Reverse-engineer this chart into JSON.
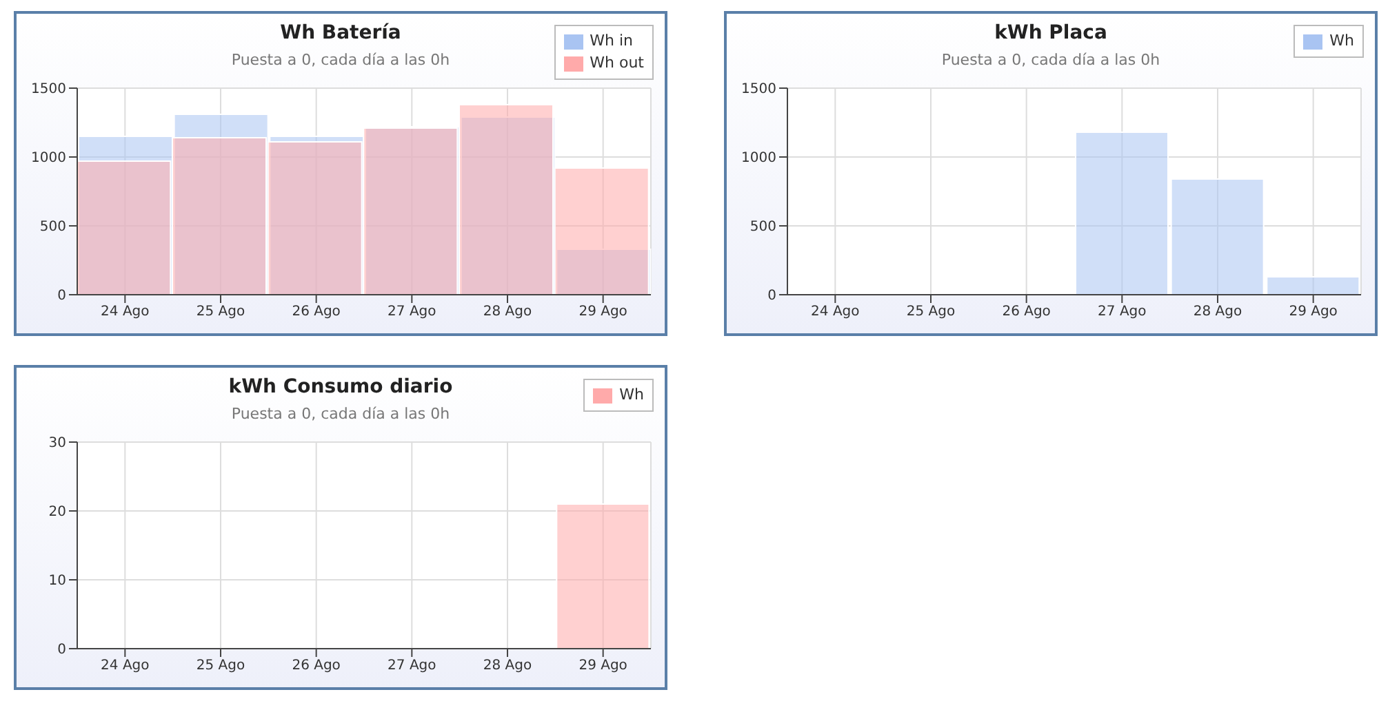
{
  "chart_data": [
    {
      "type": "bar",
      "title": "Wh Batería",
      "subtitle": "Puesta a 0, cada día a las 0h",
      "categories": [
        "24 Ago",
        "25 Ago",
        "26 Ago",
        "27 Ago",
        "28 Ago",
        "29 Ago"
      ],
      "series": [
        {
          "name": "Wh in",
          "color": "#a9c4f2",
          "values": [
            1150,
            1310,
            1150,
            1220,
            1290,
            330
          ]
        },
        {
          "name": "Wh out",
          "color": "#ffaaaa",
          "values": [
            970,
            1140,
            1110,
            1210,
            1380,
            920
          ]
        }
      ],
      "ylim": [
        0,
        1500
      ],
      "yticks": [
        0,
        500,
        1000,
        1500
      ],
      "grid": true,
      "legend": "top right"
    },
    {
      "type": "bar",
      "title": "kWh Placa",
      "subtitle": "Puesta a 0, cada día a las 0h",
      "categories": [
        "24 Ago",
        "25 Ago",
        "26 Ago",
        "27 Ago",
        "28 Ago",
        "29 Ago"
      ],
      "series": [
        {
          "name": "Wh",
          "color": "#a9c4f2",
          "values": [
            0,
            0,
            0,
            1180,
            840,
            130
          ]
        }
      ],
      "ylim": [
        0,
        1500
      ],
      "yticks": [
        0,
        500,
        1000,
        1500
      ],
      "grid": true,
      "legend": "top right"
    },
    {
      "type": "bar",
      "title": "kWh Consumo diario",
      "subtitle": "Puesta a 0, cada día a las 0h",
      "categories": [
        "24 Ago",
        "25 Ago",
        "26 Ago",
        "27 Ago",
        "28 Ago",
        "29 Ago"
      ],
      "series": [
        {
          "name": "Wh",
          "color": "#ffaaaa",
          "values": [
            0,
            0,
            0,
            0,
            0,
            21
          ]
        }
      ],
      "ylim": [
        0,
        30
      ],
      "yticks": [
        0,
        10,
        20,
        30
      ],
      "grid": true,
      "legend": "top right"
    }
  ]
}
